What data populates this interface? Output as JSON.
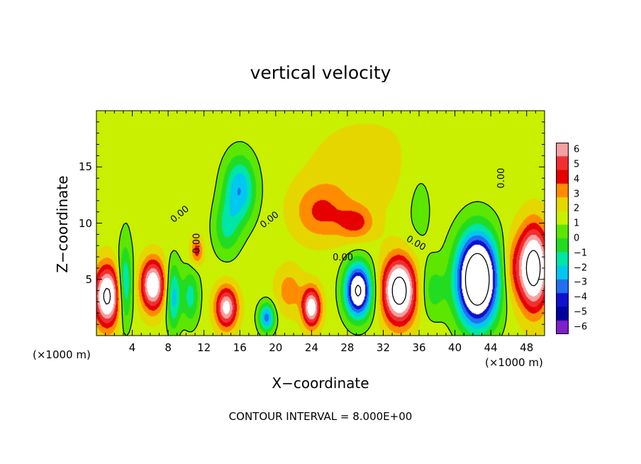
{
  "chart_data": {
    "type": "heatmap",
    "title": "vertical velocity",
    "xlabel": "X−coordinate",
    "ylabel": "Z−coordinate",
    "x_unit": "(×1000 m)",
    "footer": "CONTOUR INTERVAL = 8.000E+00",
    "xlim": [
      0,
      50
    ],
    "ylim": [
      0,
      20
    ],
    "x_ticks": [
      "4",
      "8",
      "12",
      "16",
      "20",
      "24",
      "28",
      "32",
      "36",
      "40",
      "44",
      "48"
    ],
    "y_ticks": [
      "5",
      "10",
      "15"
    ],
    "colorbar": {
      "ticks": [
        "6",
        "5",
        "4",
        "3",
        "2",
        "1",
        "0",
        "−1",
        "−2",
        "−3",
        "−4",
        "−5",
        "−6"
      ],
      "colors": [
        "#f5a0a0",
        "#f03030",
        "#e60000",
        "#ff8c00",
        "#e6d600",
        "#c8f000",
        "#5ce600",
        "#22dc22",
        "#00e6a6",
        "#00c8f0",
        "#2070f0",
        "#1010d0",
        "#0000a0",
        "#8020c8"
      ]
    },
    "contour_label": "0.00",
    "cells": [
      {
        "x": 1.2,
        "z": 3.5,
        "w": 8,
        "sx": 1.4,
        "sz": 2.6
      },
      {
        "x": 3.2,
        "z": 4.5,
        "w": -4,
        "sx": 0.8,
        "sz": 3.5
      },
      {
        "x": 6.3,
        "z": 4.5,
        "w": 7,
        "sx": 1.3,
        "sz": 2.2
      },
      {
        "x": 8.6,
        "z": 3.5,
        "w": -4,
        "sx": 0.8,
        "sz": 3
      },
      {
        "x": 11.2,
        "z": 7.5,
        "w": 3,
        "sx": 0.7,
        "sz": 1.2
      },
      {
        "x": 10.5,
        "z": 3.5,
        "w": -3,
        "sx": 1,
        "sz": 2.5
      },
      {
        "x": 14.5,
        "z": 2.5,
        "w": 6,
        "sx": 1.2,
        "sz": 1.8
      },
      {
        "x": 16,
        "z": 13,
        "w": -4.5,
        "sx": 1.8,
        "sz": 3
      },
      {
        "x": 14.5,
        "z": 9.5,
        "w": -2.5,
        "sx": 1.5,
        "sz": 2.5
      },
      {
        "x": 19,
        "z": 1.6,
        "w": -5,
        "sx": 0.9,
        "sz": 1.3
      },
      {
        "x": 21.5,
        "z": 4,
        "w": 2,
        "sx": 1.5,
        "sz": 2
      },
      {
        "x": 24,
        "z": 2.5,
        "w": 6.5,
        "sx": 1,
        "sz": 1.7
      },
      {
        "x": 25,
        "z": 11,
        "w": 2.5,
        "sx": 3,
        "sz": 2.5
      },
      {
        "x": 29,
        "z": 10,
        "w": 2.5,
        "sx": 2,
        "sz": 1.5
      },
      {
        "x": 29.2,
        "z": 4,
        "w": -9,
        "sx": 1.5,
        "sz": 2.4
      },
      {
        "x": 33.8,
        "z": 4,
        "w": 9,
        "sx": 1.8,
        "sz": 2.8
      },
      {
        "x": 37.5,
        "z": 4,
        "w": -2,
        "sx": 1.5,
        "sz": 2.5
      },
      {
        "x": 42.5,
        "z": 5,
        "w": -12,
        "sx": 2.3,
        "sz": 4
      },
      {
        "x": 46.5,
        "z": 6,
        "w": 2,
        "sx": 1.3,
        "sz": 3
      },
      {
        "x": 48.8,
        "z": 6,
        "w": 9,
        "sx": 1.6,
        "sz": 3.5
      },
      {
        "x": 36,
        "z": 12,
        "w": -1,
        "sx": 2,
        "sz": 5
      },
      {
        "x": 4.5,
        "z": 12,
        "w": -0.5,
        "sx": 3,
        "sz": 3
      },
      {
        "x": 30,
        "z": 15,
        "w": 1,
        "sx": 6,
        "sz": 4
      }
    ]
  }
}
